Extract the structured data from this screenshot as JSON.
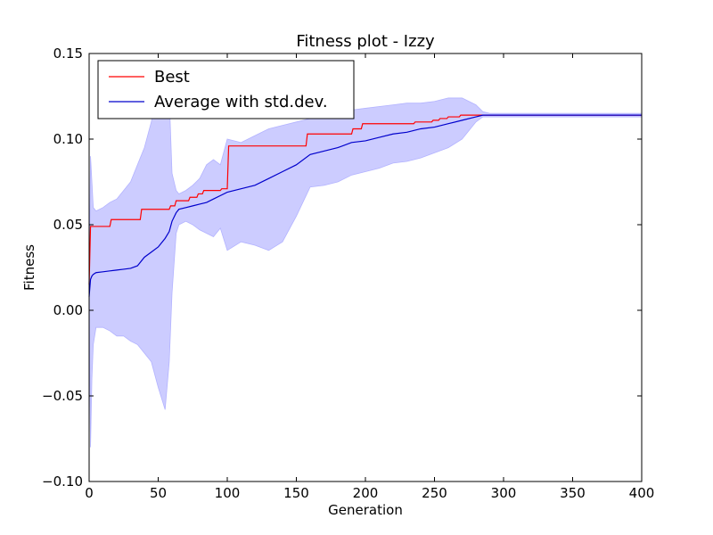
{
  "chart_data": {
    "type": "line",
    "title": "Fitness plot - Izzy",
    "xlabel": "Generation",
    "ylabel": "Fitness",
    "xlim": [
      0,
      400
    ],
    "ylim": [
      -0.1,
      0.15
    ],
    "xticks": [
      0,
      50,
      100,
      150,
      200,
      250,
      300,
      350,
      400
    ],
    "xtick_labels": [
      "0",
      "50",
      "100",
      "150",
      "200",
      "250",
      "300",
      "350",
      "400"
    ],
    "yticks": [
      -0.1,
      -0.05,
      0.0,
      0.05,
      0.1,
      0.15
    ],
    "ytick_labels": [
      "−0.10",
      "−0.05",
      "0.00",
      "0.05",
      "0.10",
      "0.15"
    ],
    "grid": false,
    "legend_position": "top-left",
    "series": [
      {
        "name": "Best",
        "color": "#ff0000",
        "step": true,
        "x": [
          0,
          1,
          2,
          15,
          16,
          37,
          38,
          58,
          59,
          62,
          63,
          72,
          73,
          78,
          79,
          82,
          83,
          95,
          96,
          100,
          101,
          157,
          158,
          190,
          191,
          197,
          198,
          235,
          236,
          248,
          249,
          253,
          254,
          259,
          260,
          268,
          269,
          400
        ],
        "y": [
          0.015,
          0.049,
          0.049,
          0.049,
          0.053,
          0.053,
          0.059,
          0.059,
          0.061,
          0.061,
          0.064,
          0.064,
          0.066,
          0.066,
          0.068,
          0.068,
          0.07,
          0.07,
          0.071,
          0.071,
          0.096,
          0.096,
          0.103,
          0.103,
          0.106,
          0.106,
          0.109,
          0.109,
          0.11,
          0.11,
          0.111,
          0.111,
          0.112,
          0.112,
          0.113,
          0.113,
          0.114,
          0.114
        ]
      },
      {
        "name": "Average with std.dev.",
        "color": "#0000cc",
        "band_color": "#ccccff",
        "x": [
          0,
          1,
          2,
          3,
          5,
          10,
          15,
          20,
          25,
          30,
          35,
          40,
          45,
          50,
          55,
          58,
          60,
          63,
          65,
          70,
          75,
          80,
          85,
          90,
          95,
          100,
          110,
          120,
          130,
          140,
          150,
          160,
          170,
          180,
          190,
          200,
          210,
          220,
          230,
          240,
          250,
          260,
          270,
          280,
          285,
          290,
          300,
          350,
          400
        ],
        "y": [
          0.008,
          0.018,
          0.02,
          0.021,
          0.022,
          0.0225,
          0.023,
          0.0235,
          0.024,
          0.0245,
          0.026,
          0.031,
          0.034,
          0.037,
          0.042,
          0.046,
          0.052,
          0.057,
          0.059,
          0.06,
          0.061,
          0.062,
          0.063,
          0.065,
          0.067,
          0.069,
          0.071,
          0.073,
          0.077,
          0.081,
          0.085,
          0.091,
          0.093,
          0.095,
          0.098,
          0.099,
          0.101,
          0.103,
          0.104,
          0.106,
          0.107,
          0.109,
          0.111,
          0.113,
          0.114,
          0.114,
          0.114,
          0.114,
          0.114
        ],
        "upper": [
          0.008,
          0.09,
          0.075,
          0.06,
          0.058,
          0.06,
          0.063,
          0.065,
          0.07,
          0.075,
          0.085,
          0.095,
          0.11,
          0.13,
          0.145,
          0.125,
          0.08,
          0.07,
          0.068,
          0.07,
          0.073,
          0.077,
          0.085,
          0.088,
          0.085,
          0.1,
          0.098,
          0.102,
          0.106,
          0.108,
          0.11,
          0.112,
          0.115,
          0.116,
          0.117,
          0.118,
          0.119,
          0.12,
          0.121,
          0.121,
          0.122,
          0.124,
          0.124,
          0.12,
          0.116,
          0.115,
          0.115,
          0.115,
          0.115
        ],
        "lower": [
          0.008,
          -0.08,
          -0.04,
          -0.02,
          -0.01,
          -0.01,
          -0.012,
          -0.015,
          -0.015,
          -0.018,
          -0.02,
          -0.025,
          -0.03,
          -0.045,
          -0.058,
          -0.03,
          0.01,
          0.045,
          0.05,
          0.052,
          0.05,
          0.047,
          0.045,
          0.043,
          0.048,
          0.035,
          0.04,
          0.038,
          0.035,
          0.04,
          0.055,
          0.072,
          0.073,
          0.075,
          0.079,
          0.081,
          0.083,
          0.086,
          0.087,
          0.089,
          0.092,
          0.095,
          0.1,
          0.11,
          0.113,
          0.113,
          0.113,
          0.113,
          0.113
        ]
      }
    ]
  }
}
